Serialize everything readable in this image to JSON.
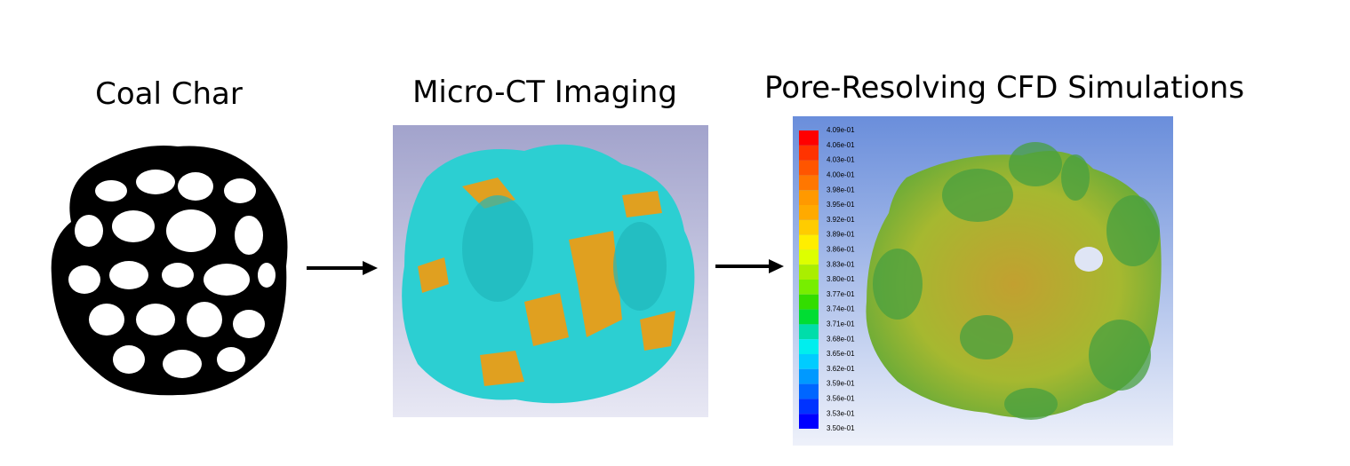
{
  "panels": [
    {
      "title": "Coal Char"
    },
    {
      "title": "Micro-CT Imaging"
    },
    {
      "title": "Pore-Resolving CFD Simulations",
      "colorbar": {
        "labels": [
          "4.09e-01",
          "4.06e-01",
          "4.03e-01",
          "4.00e-01",
          "3.98e-01",
          "3.95e-01",
          "3.92e-01",
          "3.89e-01",
          "3.86e-01",
          "3.83e-01",
          "3.80e-01",
          "3.77e-01",
          "3.74e-01",
          "3.71e-01",
          "3.68e-01",
          "3.65e-01",
          "3.62e-01",
          "3.59e-01",
          "3.56e-01",
          "3.53e-01",
          "3.50e-01"
        ]
      }
    }
  ]
}
